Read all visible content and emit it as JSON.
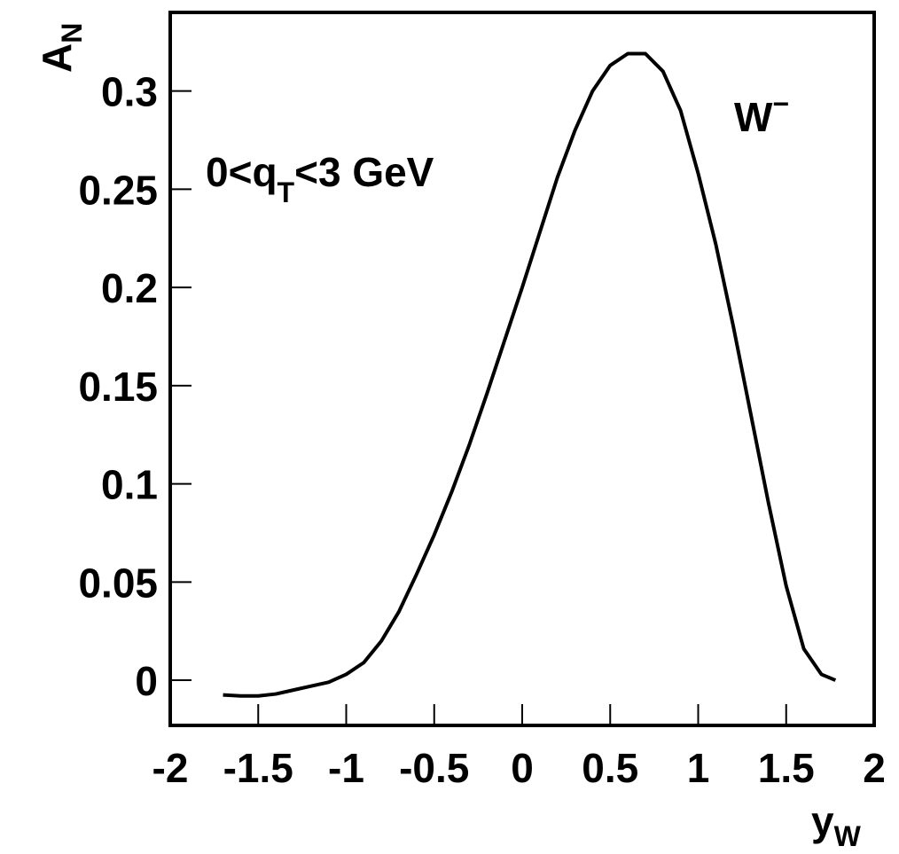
{
  "chart_data": {
    "type": "line",
    "x_label": {
      "main": "y",
      "sub": "W"
    },
    "y_label": {
      "main": "A",
      "sub": "N"
    },
    "annotations": [
      {
        "parts": [
          "0<q",
          "T",
          "<3 GeV"
        ]
      },
      {
        "parts": [
          "W",
          "−"
        ]
      }
    ],
    "x": [
      -1.7,
      -1.6,
      -1.5,
      -1.4,
      -1.3,
      -1.2,
      -1.1,
      -1.0,
      -0.9,
      -0.8,
      -0.7,
      -0.6,
      -0.5,
      -0.4,
      -0.3,
      -0.2,
      -0.1,
      0,
      0.1,
      0.2,
      0.3,
      0.4,
      0.5,
      0.6,
      0.7,
      0.8,
      0.9,
      1.0,
      1.1,
      1.2,
      1.3,
      1.4,
      1.5,
      1.6,
      1.7,
      1.78
    ],
    "series": [
      {
        "color": "#000000",
        "values": [
          -0.0075,
          -0.008,
          -0.008,
          -0.007,
          -0.005,
          -0.003,
          -0.001,
          0.003,
          0.009,
          0.02,
          0.035,
          0.054,
          0.074,
          0.096,
          0.12,
          0.146,
          0.173,
          0.2,
          0.228,
          0.256,
          0.28,
          0.3,
          0.313,
          0.319,
          0.319,
          0.31,
          0.29,
          0.258,
          0.222,
          0.18,
          0.135,
          0.09,
          0.048,
          0.016,
          0.003,
          0
        ]
      }
    ],
    "xlim": [
      -2,
      2
    ],
    "xticks": [
      -2,
      -1.5,
      -1,
      -0.5,
      0,
      0.5,
      1,
      1.5,
      2
    ],
    "ylim": [
      -0.023,
      0.34
    ],
    "yticks": [
      0,
      0.05,
      0.1,
      0.15,
      0.2,
      0.25,
      0.3
    ],
    "grid": false
  }
}
